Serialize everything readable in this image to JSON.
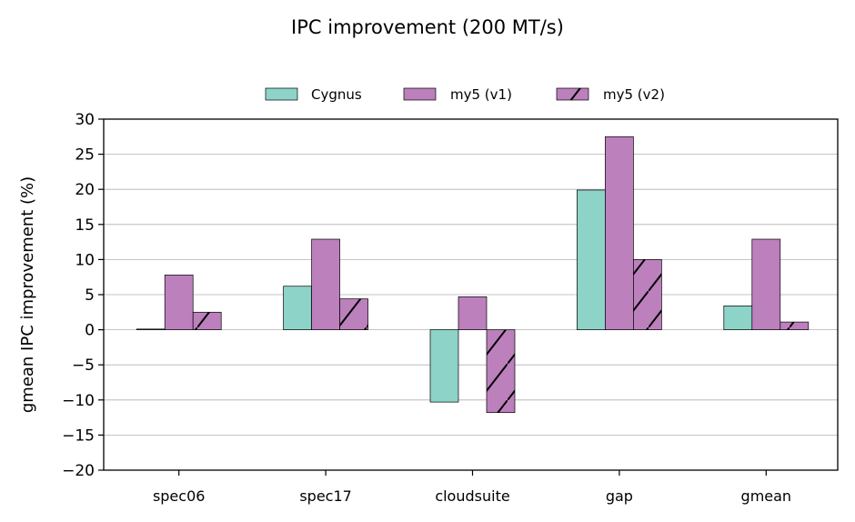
{
  "chart_data": {
    "type": "bar",
    "title": "IPC improvement (200 MT/s)",
    "xlabel": "",
    "ylabel": "gmean IPC improvement (%)",
    "ylim": [
      -20,
      30
    ],
    "yticks": [
      30,
      25,
      20,
      15,
      10,
      5,
      0,
      -5,
      -10,
      -15,
      -20
    ],
    "ytick_labels": [
      "30",
      "25",
      "20",
      "15",
      "10",
      "5",
      "0",
      "−5",
      "−10",
      "−15",
      "−20"
    ],
    "grid": "horizontal",
    "legend_position": "top-center",
    "categories": [
      "spec06",
      "spec17",
      "cloudsuite",
      "gap",
      "gmean"
    ],
    "series": [
      {
        "name": "Cygnus",
        "color": "#8dd3c7",
        "hatch": false,
        "values": [
          0.1,
          6.2,
          -10.3,
          19.9,
          3.4
        ]
      },
      {
        "name": "my5 (v1)",
        "color": "#bc80bd",
        "hatch": false,
        "values": [
          7.8,
          12.9,
          4.7,
          27.5,
          12.9
        ]
      },
      {
        "name": "my5 (v2)",
        "color": "#bc80bd",
        "hatch": true,
        "values": [
          2.5,
          4.4,
          -11.8,
          10.0,
          1.1
        ]
      }
    ]
  }
}
